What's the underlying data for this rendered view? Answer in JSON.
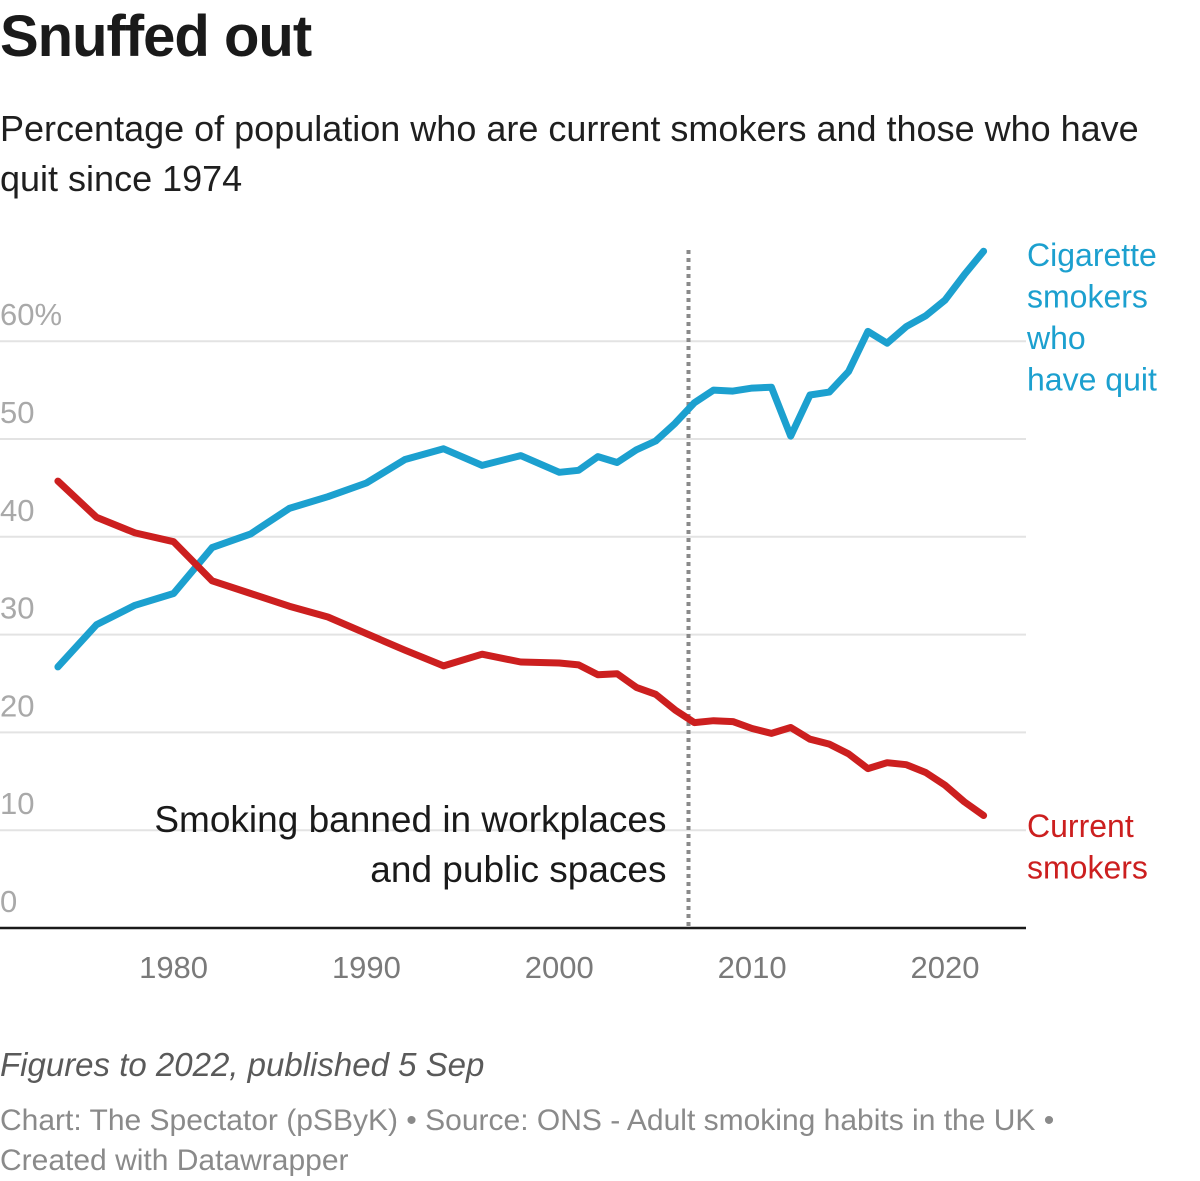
{
  "title": "Snuffed out",
  "subtitle": "Percentage of population who are current smokers and those who have quit since 1974",
  "notes": "Figures to 2022, published 5 Sep",
  "credit": {
    "chart": "Chart: The Spectator (pSByK)",
    "separator": " • ",
    "source": "Source: ONS - Adult smoking habits in the UK",
    "created": "Created with Datawrapper"
  },
  "chart_data": {
    "type": "line",
    "title": "Snuffed out",
    "xlabel": "",
    "ylabel": "",
    "xlim": [
      1971,
      2024.2
    ],
    "ylim": [
      0,
      70
    ],
    "x_ticks": [
      1980,
      1990,
      2000,
      2010,
      2020
    ],
    "x_tick_labels": [
      "1980",
      "1990",
      "2000",
      "2010",
      "2020"
    ],
    "y_ticks": [
      0,
      10,
      20,
      30,
      40,
      50,
      60
    ],
    "y_tick_labels": [
      "0",
      "10",
      "20",
      "30",
      "40",
      "50",
      "60%"
    ],
    "grid": true,
    "annotations": [
      {
        "x": 2006.7,
        "type": "vline",
        "style": "dotted",
        "text": [
          "Smoking banned in workplaces",
          "and public spaces"
        ]
      }
    ],
    "series": [
      {
        "name": "Cigarette smokers who have quit",
        "label_lines": [
          "Cigarette",
          "smokers",
          "who",
          "have quit"
        ],
        "color": "#1ca0cf",
        "x": [
          1974,
          1976,
          1978,
          1980,
          1982,
          1984,
          1986,
          1988,
          1990,
          1992,
          1994,
          1996,
          1998,
          2000,
          2001,
          2002,
          2003,
          2004,
          2005,
          2006,
          2007,
          2008,
          2009,
          2010,
          2011,
          2012,
          2013,
          2014,
          2015,
          2016,
          2017,
          2018,
          2019,
          2020,
          2021,
          2022
        ],
        "values": [
          26.7,
          31.0,
          33.0,
          34.2,
          38.9,
          40.3,
          42.9,
          44.1,
          45.5,
          47.9,
          49.0,
          47.3,
          48.3,
          46.6,
          46.8,
          48.2,
          47.6,
          48.9,
          49.8,
          51.6,
          53.7,
          55.0,
          54.9,
          55.2,
          55.3,
          50.3,
          54.5,
          54.8,
          56.9,
          61.0,
          59.8,
          61.5,
          62.6,
          64.2,
          66.8,
          69.2
        ]
      },
      {
        "name": "Current smokers",
        "label_lines": [
          "Current",
          "smokers"
        ],
        "color": "#cc1f1f",
        "x": [
          1974,
          1976,
          1978,
          1980,
          1982,
          1984,
          1986,
          1988,
          1990,
          1992,
          1994,
          1996,
          1998,
          2000,
          2001,
          2002,
          2003,
          2004,
          2005,
          2006,
          2007,
          2008,
          2009,
          2010,
          2011,
          2012,
          2013,
          2014,
          2015,
          2016,
          2017,
          2018,
          2019,
          2020,
          2021,
          2022
        ],
        "values": [
          45.7,
          42.0,
          40.4,
          39.5,
          35.5,
          34.2,
          32.9,
          31.8,
          30.1,
          28.4,
          26.8,
          28.0,
          27.2,
          27.1,
          26.9,
          25.9,
          26.0,
          24.6,
          23.9,
          22.3,
          21.0,
          21.2,
          21.1,
          20.4,
          19.9,
          20.5,
          19.3,
          18.8,
          17.8,
          16.3,
          16.9,
          16.7,
          15.9,
          14.6,
          12.9,
          11.5
        ]
      }
    ]
  }
}
